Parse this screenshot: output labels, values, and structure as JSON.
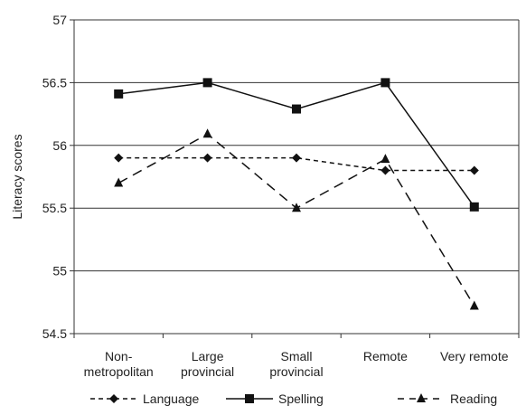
{
  "chart_data": {
    "type": "line",
    "title": "",
    "xlabel": "",
    "ylabel": "Literacy scores",
    "ylim": [
      54.5,
      57
    ],
    "yticks": [
      "54.5",
      "55",
      "55.5",
      "56",
      "56.5",
      "57"
    ],
    "categories": [
      [
        "Non-",
        "metropolitan"
      ],
      [
        "Large",
        "provincial"
      ],
      [
        "Small",
        "provincial"
      ],
      [
        "Remote"
      ],
      [
        "Very remote"
      ]
    ],
    "grid": "horizontal",
    "legend_position": "bottom",
    "series": [
      {
        "name": "Language",
        "values": [
          55.9,
          55.9,
          55.9,
          55.8,
          55.8
        ],
        "marker": "diamond",
        "dash": "short-dash",
        "color": "#111111"
      },
      {
        "name": "Spelling",
        "values": [
          56.41,
          56.5,
          56.29,
          56.5,
          55.51
        ],
        "marker": "square",
        "dash": "solid",
        "color": "#111111"
      },
      {
        "name": "Reading",
        "values": [
          55.7,
          56.09,
          55.5,
          55.89,
          54.72
        ],
        "marker": "triangle",
        "dash": "long-dash",
        "color": "#111111"
      }
    ]
  }
}
